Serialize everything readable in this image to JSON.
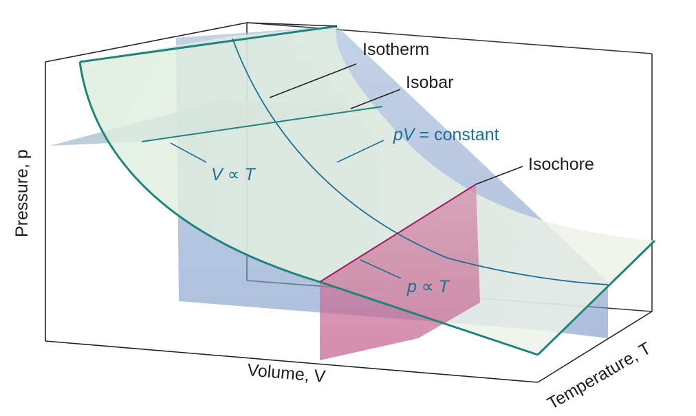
{
  "labels": {
    "isotherm": "Isotherm",
    "isobar": "Isobar",
    "isochore": "Isochore",
    "isotherm_relation_pv": "pV",
    "isotherm_relation_rest": " = constant",
    "isobar_relation_v": "V",
    "isobar_relation_prop": " ∝ ",
    "isobar_relation_t": "T",
    "isochore_relation_p": "p",
    "isochore_relation_prop": " ∝ ",
    "isochore_relation_t": "T"
  },
  "axes": {
    "x_label": "Volume, V",
    "y_label": "Pressure, p",
    "z_label": "Temperature, T"
  },
  "colors": {
    "surface": "#dfeadd",
    "surface_edge": "#1d8478",
    "isotherm_plane": "#7f9ccb",
    "isobar_plane": "#9ab7c6",
    "isochore_plane": "#c9608e",
    "curve": "#1a6f91",
    "isochore_line": "#9b1c5c",
    "box": "#222222"
  }
}
